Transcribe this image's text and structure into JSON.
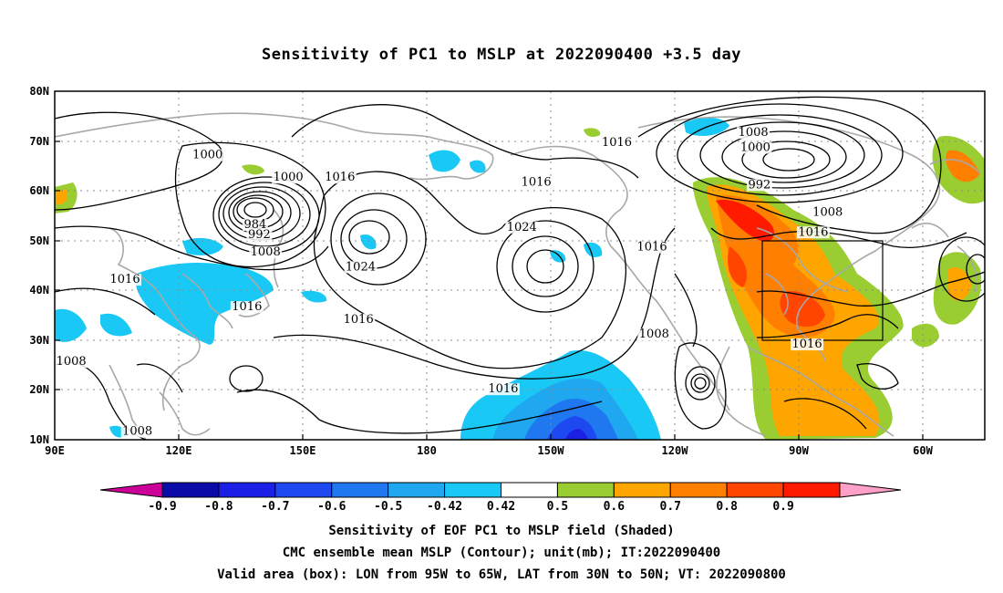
{
  "title": "Sensitivity of PC1 to MSLP at 2022090400 +3.5 day",
  "map": {
    "lon_labels": [
      "90E",
      "120E",
      "150E",
      "180",
      "150W",
      "120W",
      "90W",
      "60W"
    ],
    "lat_labels": [
      "80N",
      "70N",
      "60N",
      "50N",
      "40N",
      "30N",
      "20N",
      "10N"
    ],
    "lon_extent": [
      90,
      315
    ],
    "lat_extent": [
      10,
      80
    ],
    "valid_box": {
      "lon_min": 265,
      "lon_max": 295,
      "lat_min": 30,
      "lat_max": 50
    },
    "contour_labels": [
      {
        "text": "1000",
        "lon": 127,
        "lat": 66.5
      },
      {
        "text": "1000",
        "lon": 146.5,
        "lat": 62
      },
      {
        "text": "1016",
        "lon": 159,
        "lat": 62
      },
      {
        "text": "984",
        "lon": 138.5,
        "lat": 52.5
      },
      {
        "text": "992",
        "lon": 139.5,
        "lat": 50.5
      },
      {
        "text": "1008",
        "lon": 141,
        "lat": 47
      },
      {
        "text": "1016",
        "lon": 107,
        "lat": 41.5
      },
      {
        "text": "1016",
        "lon": 136.5,
        "lat": 36
      },
      {
        "text": "1024",
        "lon": 164,
        "lat": 44
      },
      {
        "text": "1016",
        "lon": 163.5,
        "lat": 33.5
      },
      {
        "text": "1016",
        "lon": 198.5,
        "lat": 19.5
      },
      {
        "text": "1024",
        "lon": 203,
        "lat": 52
      },
      {
        "text": "1016",
        "lon": 226,
        "lat": 69
      },
      {
        "text": "1016",
        "lon": 206.5,
        "lat": 61
      },
      {
        "text": "1016",
        "lon": 234.5,
        "lat": 48
      },
      {
        "text": "1008",
        "lon": 235,
        "lat": 30.5
      },
      {
        "text": "1008",
        "lon": 259,
        "lat": 71
      },
      {
        "text": "1000",
        "lon": 259.5,
        "lat": 68
      },
      {
        "text": "992",
        "lon": 260.5,
        "lat": 60.5
      },
      {
        "text": "1008",
        "lon": 277,
        "lat": 55
      },
      {
        "text": "1016",
        "lon": 273.5,
        "lat": 51
      },
      {
        "text": "1016",
        "lon": 272,
        "lat": 28.5
      },
      {
        "text": "1008",
        "lon": 94,
        "lat": 25
      },
      {
        "text": "1008",
        "lon": 110,
        "lat": 11
      }
    ]
  },
  "colorbar": {
    "ticks": [
      "-0.9",
      "-0.8",
      "-0.7",
      "-0.6",
      "-0.5",
      "-0.42",
      "0.42",
      "0.5",
      "0.6",
      "0.7",
      "0.8",
      "0.9"
    ],
    "colors": [
      "#0b0ba8",
      "#1c20e6",
      "#1f49f0",
      "#1f78f0",
      "#1fa8f0",
      "#19c8f5",
      "#ffffff",
      "#9acd32",
      "#ffa500",
      "#ff7f00",
      "#ff4500",
      "#ff1a00"
    ],
    "below_color": "#cc0099",
    "above_color": "#ffa0c8"
  },
  "captions": [
    "Sensitivity of EOF PC1 to MSLP field (Shaded)",
    "CMC ensemble mean MSLP (Contour); unit(mb); IT:2022090400",
    "Valid area (box): LON from 95W to 65W, LAT from 30N to 50N; VT: 2022090800"
  ]
}
